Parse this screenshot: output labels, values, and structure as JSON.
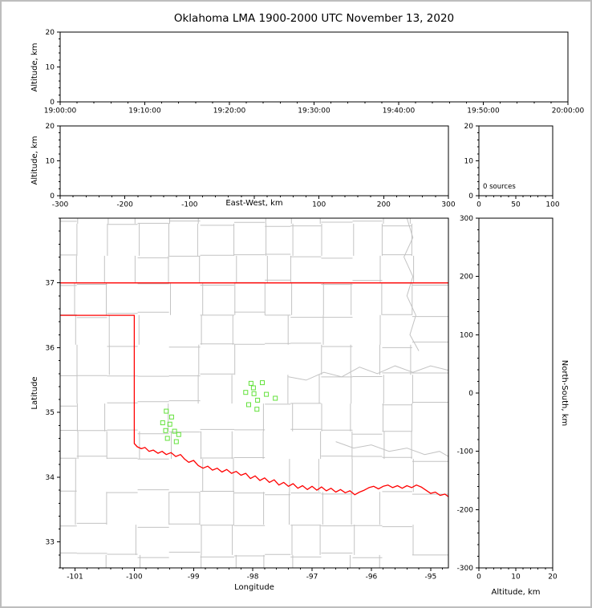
{
  "figure": {
    "title": "Oklahoma LMA 1900-2000 UTC November 13, 2020",
    "background": "#ffffff",
    "border_color": "#bdbdbd"
  },
  "colors": {
    "axis": "#000000",
    "county_lines": "#c3c3c3",
    "state_border": "#ff0000",
    "source_marker": "#62e23a"
  },
  "chart_data": [
    {
      "id": "time_height",
      "type": "scatter",
      "ylabel": "Altitude, km",
      "xlim": [
        0,
        3600
      ],
      "xticks": [
        0,
        600,
        1200,
        1800,
        2400,
        3000,
        3600
      ],
      "xtick_labels": [
        "19:00:00",
        "19:10:00",
        "19:20:00",
        "19:30:00",
        "19:40:00",
        "19:50:00",
        "20:00:00"
      ],
      "ylim": [
        0,
        20
      ],
      "yticks": [
        0,
        10,
        20
      ],
      "points": []
    },
    {
      "id": "ew_height",
      "type": "scatter",
      "xlabel": "East-West, km",
      "ylabel": "Altitude, km",
      "xlim": [
        -300,
        300
      ],
      "xticks": [
        -300,
        -200,
        -100,
        0,
        100,
        200,
        300
      ],
      "xtick_labels": [
        "-300",
        "-200",
        "-100",
        "",
        "100",
        "200",
        "300"
      ],
      "ylim": [
        0,
        20
      ],
      "yticks": [
        0,
        10,
        20
      ],
      "points": []
    },
    {
      "id": "alt_histogram",
      "type": "bar",
      "annotation": "0 sources",
      "xlim": [
        0,
        100
      ],
      "xticks": [
        0,
        50,
        100
      ],
      "ylim": [
        0,
        20
      ],
      "yticks": [
        0,
        10,
        20
      ],
      "values": []
    },
    {
      "id": "plan_view_map",
      "type": "scatter",
      "xlabel": "Longitude",
      "ylabel": "Latitude",
      "xlim": [
        -101.25,
        -94.7
      ],
      "xticks": [
        -101,
        -100,
        -99,
        -98,
        -97,
        -96,
        -95
      ],
      "ylim": [
        32.6,
        38.0
      ],
      "yticks": [
        33,
        34,
        35,
        36,
        37
      ],
      "marker": {
        "shape": "open-square",
        "size": 5,
        "color": "#62e23a"
      },
      "points": [
        [
          -99.46,
          35.02
        ],
        [
          -99.37,
          34.93
        ],
        [
          -99.52,
          34.84
        ],
        [
          -99.4,
          34.82
        ],
        [
          -99.47,
          34.72
        ],
        [
          -99.32,
          34.71
        ],
        [
          -99.44,
          34.6
        ],
        [
          -99.29,
          34.55
        ],
        [
          -99.25,
          34.66
        ],
        [
          -98.03,
          35.45
        ],
        [
          -97.84,
          35.46
        ],
        [
          -97.99,
          35.38
        ],
        [
          -98.12,
          35.31
        ],
        [
          -97.98,
          35.29
        ],
        [
          -97.77,
          35.28
        ],
        [
          -97.92,
          35.19
        ],
        [
          -98.07,
          35.12
        ],
        [
          -97.93,
          35.05
        ],
        [
          -97.62,
          35.22
        ]
      ],
      "state_border": [
        [
          [
            -101.25,
            37.0
          ],
          [
            -94.7,
            37.0
          ]
        ],
        [
          [
            -101.25,
            36.5
          ],
          [
            -100.0,
            36.5
          ],
          [
            -100.0,
            34.52
          ],
          [
            -99.95,
            34.47
          ],
          [
            -99.88,
            34.44
          ],
          [
            -99.82,
            34.46
          ],
          [
            -99.75,
            34.4
          ],
          [
            -99.68,
            34.42
          ],
          [
            -99.6,
            34.37
          ],
          [
            -99.53,
            34.4
          ],
          [
            -99.46,
            34.35
          ],
          [
            -99.38,
            34.38
          ],
          [
            -99.3,
            34.32
          ],
          [
            -99.22,
            34.35
          ],
          [
            -99.15,
            34.28
          ],
          [
            -99.08,
            34.23
          ],
          [
            -99.0,
            34.26
          ],
          [
            -98.92,
            34.18
          ],
          [
            -98.84,
            34.14
          ],
          [
            -98.76,
            34.17
          ],
          [
            -98.68,
            34.11
          ],
          [
            -98.6,
            34.14
          ],
          [
            -98.52,
            34.08
          ],
          [
            -98.44,
            34.12
          ],
          [
            -98.36,
            34.06
          ],
          [
            -98.28,
            34.09
          ],
          [
            -98.2,
            34.03
          ],
          [
            -98.12,
            34.06
          ],
          [
            -98.04,
            33.98
          ],
          [
            -97.96,
            34.02
          ],
          [
            -97.88,
            33.95
          ],
          [
            -97.8,
            33.99
          ],
          [
            -97.72,
            33.92
          ],
          [
            -97.64,
            33.96
          ],
          [
            -97.56,
            33.88
          ],
          [
            -97.48,
            33.92
          ],
          [
            -97.4,
            33.86
          ],
          [
            -97.32,
            33.9
          ],
          [
            -97.24,
            33.83
          ],
          [
            -97.16,
            33.87
          ],
          [
            -97.08,
            33.81
          ],
          [
            -97.0,
            33.86
          ],
          [
            -96.92,
            33.8
          ],
          [
            -96.84,
            33.85
          ],
          [
            -96.76,
            33.79
          ],
          [
            -96.68,
            33.83
          ],
          [
            -96.6,
            33.77
          ],
          [
            -96.52,
            33.81
          ],
          [
            -96.44,
            33.76
          ],
          [
            -96.36,
            33.79
          ],
          [
            -96.28,
            33.73
          ],
          [
            -96.2,
            33.77
          ],
          [
            -96.12,
            33.8
          ],
          [
            -96.04,
            33.84
          ],
          [
            -95.96,
            33.86
          ],
          [
            -95.88,
            33.82
          ],
          [
            -95.8,
            33.86
          ],
          [
            -95.72,
            33.88
          ],
          [
            -95.64,
            33.84
          ],
          [
            -95.56,
            33.87
          ],
          [
            -95.48,
            33.83
          ],
          [
            -95.4,
            33.87
          ],
          [
            -95.32,
            33.84
          ],
          [
            -95.24,
            33.88
          ],
          [
            -95.16,
            33.85
          ],
          [
            -95.08,
            33.8
          ],
          [
            -95.0,
            33.75
          ],
          [
            -94.92,
            33.77
          ],
          [
            -94.84,
            33.72
          ],
          [
            -94.76,
            33.74
          ],
          [
            -94.7,
            33.7
          ]
        ]
      ],
      "rivers": [
        [
          [
            -97.4,
            35.55
          ],
          [
            -97.1,
            35.5
          ],
          [
            -96.8,
            35.62
          ],
          [
            -96.5,
            35.55
          ],
          [
            -96.2,
            35.7
          ],
          [
            -95.9,
            35.6
          ],
          [
            -95.6,
            35.72
          ],
          [
            -95.3,
            35.62
          ],
          [
            -95.0,
            35.72
          ],
          [
            -94.7,
            35.65
          ]
        ],
        [
          [
            -96.6,
            34.55
          ],
          [
            -96.3,
            34.45
          ],
          [
            -96.0,
            34.5
          ],
          [
            -95.7,
            34.4
          ],
          [
            -95.4,
            34.45
          ],
          [
            -95.1,
            34.35
          ],
          [
            -94.85,
            34.4
          ],
          [
            -94.7,
            34.32
          ]
        ],
        [
          [
            -95.4,
            38.0
          ],
          [
            -95.3,
            37.7
          ],
          [
            -95.45,
            37.4
          ],
          [
            -95.3,
            37.1
          ],
          [
            -95.4,
            36.8
          ],
          [
            -95.25,
            36.5
          ],
          [
            -95.35,
            36.2
          ],
          [
            -95.2,
            35.95
          ]
        ]
      ],
      "counties": {
        "seed": 11,
        "lon_step": 0.42,
        "lat_step": 0.4,
        "jitter": 0.09,
        "skip": 0.17
      }
    },
    {
      "id": "ns_alt",
      "type": "scatter",
      "xlabel": "Altitude, km",
      "ylabel_right": "North-South, km",
      "xlim": [
        0,
        20
      ],
      "xticks": [
        0,
        10,
        20
      ],
      "ylim": [
        -300,
        300
      ],
      "yticks": [
        -300,
        -200,
        -100,
        0,
        100,
        200,
        300
      ],
      "points": []
    }
  ]
}
